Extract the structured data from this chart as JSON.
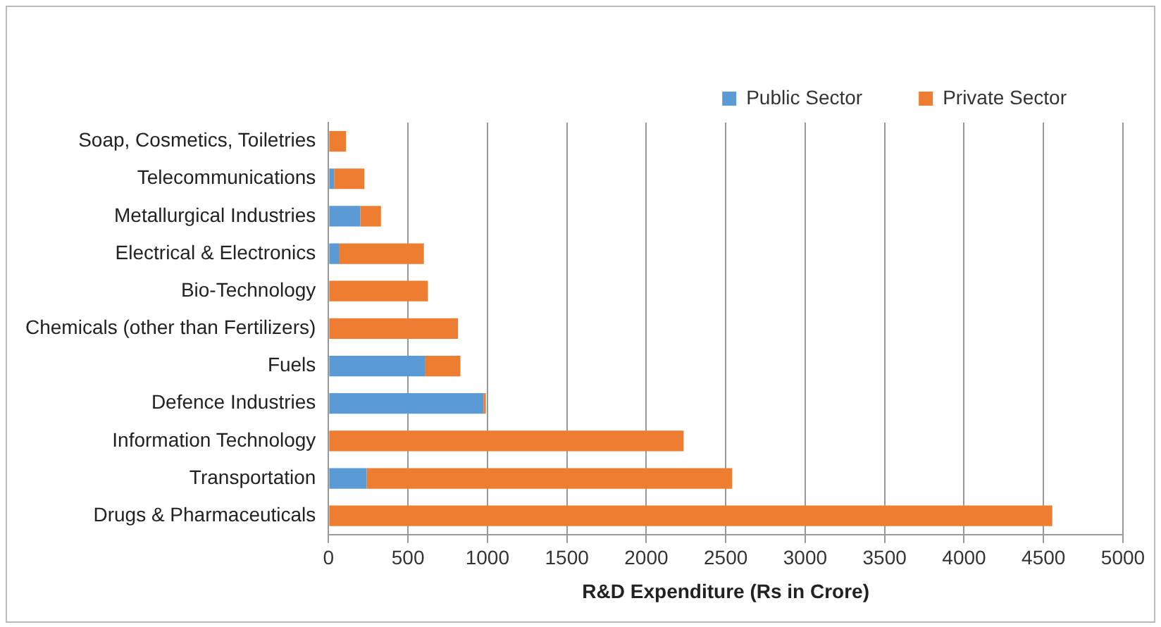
{
  "chart_data": {
    "type": "bar",
    "orientation": "horizontal",
    "stacked": true,
    "xlabel": "R&D Expenditure (Rs in Crore)",
    "categories": [
      "Soap, Cosmetics, Toiletries",
      "Telecommunications",
      "Metallurgical Industries",
      "Electrical & Electronics",
      "Bio-Technology",
      "Chemicals (other than Fertilizers)",
      "Fuels",
      "Defence Industries",
      "Information Technology",
      "Transportation",
      "Drugs & Pharmaceuticals"
    ],
    "series": [
      {
        "name": "Public Sector",
        "color": "#5b9bd5",
        "values": [
          0,
          35,
          200,
          65,
          0,
          0,
          610,
          975,
          0,
          240,
          0
        ]
      },
      {
        "name": "Private Sector",
        "color": "#ed7d31",
        "values": [
          110,
          190,
          130,
          535,
          625,
          815,
          220,
          15,
          2235,
          2300,
          4555
        ]
      }
    ],
    "xlim": [
      0,
      5000
    ],
    "xticks": [
      0,
      500,
      1000,
      1500,
      2000,
      2500,
      3000,
      3500,
      4000,
      4500,
      5000
    ],
    "grid": "x",
    "legend": "top right"
  }
}
